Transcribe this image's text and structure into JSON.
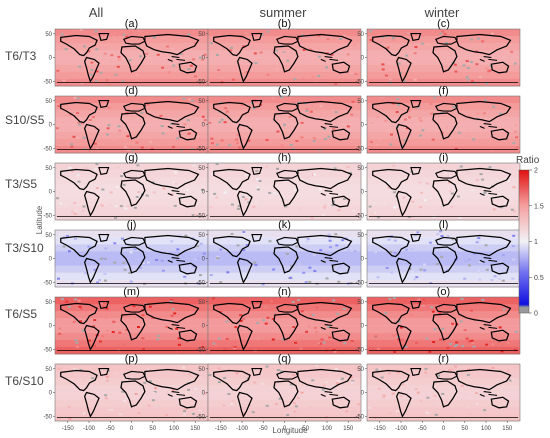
{
  "chart_data": {
    "type": "heatmap",
    "column_titles": [
      "All",
      "summer",
      "winter"
    ],
    "row_labels": [
      "T6/T3",
      "S10/S5",
      "T3/S5",
      "T3/S10",
      "T6/S5",
      "T6/S10"
    ],
    "panel_labels": [
      "(a)",
      "(b)",
      "(c)",
      "(d)",
      "(e)",
      "(f)",
      "(g)",
      "(h)",
      "(i)",
      "(j)",
      "(k)",
      "(l)",
      "(m)",
      "(n)",
      "(o)",
      "(p)",
      "(q)",
      "(r)"
    ],
    "xlabel": "Longitude",
    "ylabel": "Latitude",
    "x_ticks": [
      "-150",
      "-100",
      "-50",
      "0",
      "50",
      "100",
      "150"
    ],
    "x_tick_values": [
      -150,
      -100,
      -50,
      0,
      50,
      100,
      150
    ],
    "y_ticks": [
      "50",
      "0",
      "-50"
    ],
    "y_tick_values": [
      50,
      0,
      -50
    ],
    "xlim": [
      -180,
      180
    ],
    "ylim": [
      -60,
      60
    ],
    "colorbar": {
      "title": "Ratio",
      "ticks": [
        "2",
        "1.5",
        "1",
        "0.5",
        "0"
      ],
      "tick_values": [
        2,
        1.5,
        1,
        0.5,
        0
      ],
      "range": [
        0,
        2
      ],
      "colors": [
        "#9a9a9a",
        "#2020e0",
        "#8c8cf0",
        "#f0f0f5",
        "#f5a0a0",
        "#e01818"
      ]
    },
    "approx_mean_ratio_by_row": [
      1.6,
      1.6,
      1.2,
      0.75,
      1.75,
      1.3
    ],
    "coastline_color": "#000000"
  }
}
